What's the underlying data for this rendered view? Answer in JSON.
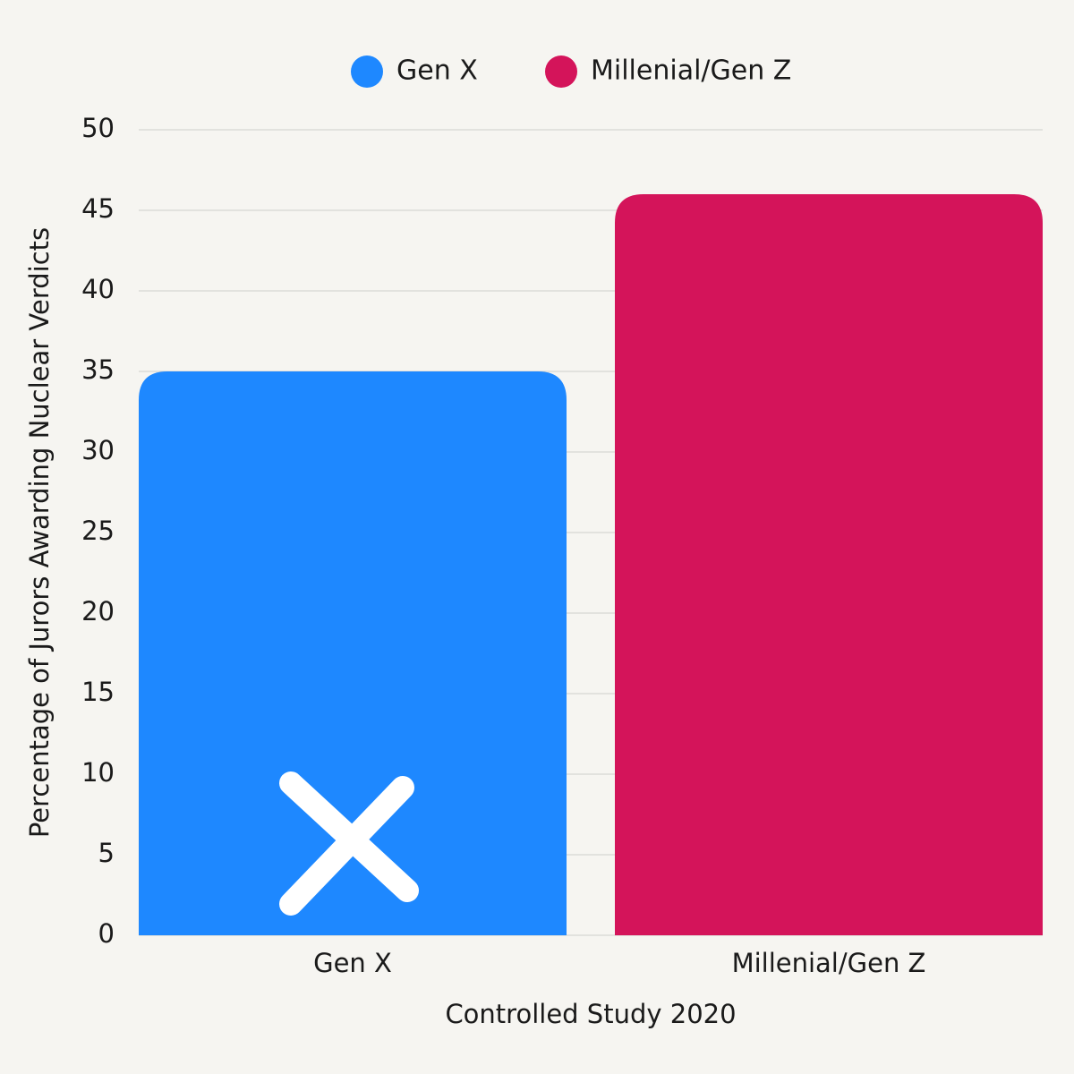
{
  "chart_data": {
    "type": "bar",
    "categories": [
      "Gen X",
      "Millenial/Gen Z"
    ],
    "values": [
      35,
      46
    ],
    "colors": [
      "#1e88ff",
      "#d4145a"
    ],
    "xlabel": "Controlled Study 2020",
    "ylabel": "Percentage of Jurors Awarding Nuclear Verdicts",
    "ylim": [
      0,
      50
    ],
    "yticks": [
      0,
      5,
      10,
      15,
      20,
      25,
      30,
      35,
      40,
      45,
      50
    ],
    "grid": true,
    "legend": "top"
  }
}
